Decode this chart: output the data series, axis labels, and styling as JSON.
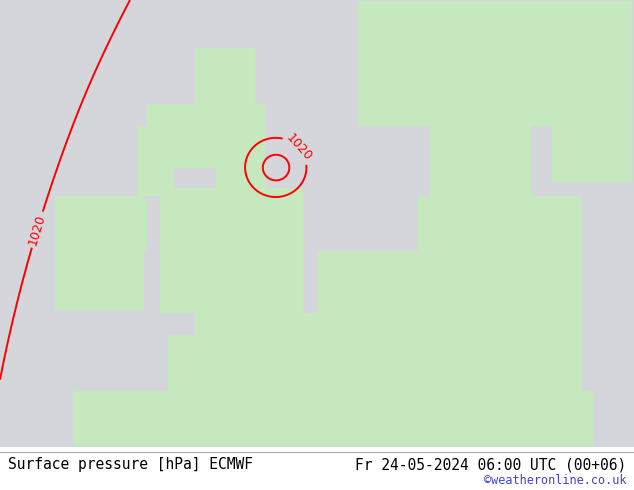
{
  "title_left": "Surface pressure [hPa] ECMWF",
  "title_right": "Fr 24-05-2024 06:00 UTC (00+06)",
  "watermark": "©weatheronline.co.uk",
  "sea_color": [
    0.835,
    0.843,
    0.859
  ],
  "land_color": [
    0.78,
    0.91,
    0.75
  ],
  "watermark_color": "#4444cc",
  "title_fontsize": 11,
  "lon_min": -13,
  "lon_max": 18,
  "lat_min": 46.5,
  "lat_max": 62.5
}
